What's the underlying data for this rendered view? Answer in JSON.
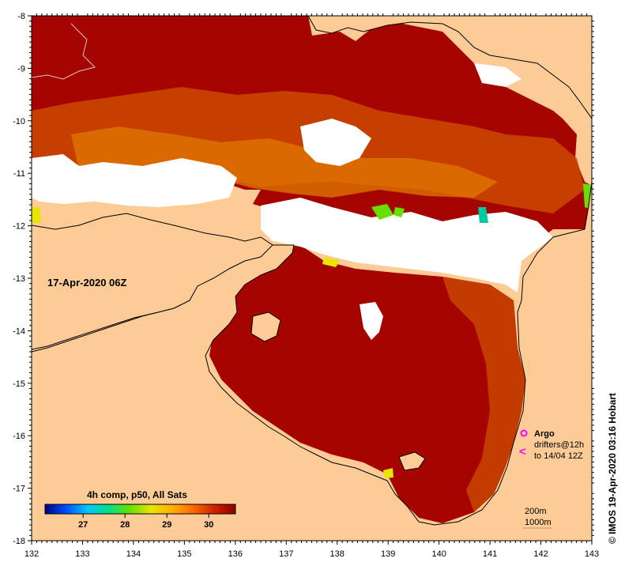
{
  "map": {
    "date_label": "17-Apr-2020 06Z",
    "credit": "© IMOS 19-Apr-2020 03:16 Hobart",
    "colorbar": {
      "title": "4h comp, p50, All Sats",
      "ticks": [
        "27",
        "28",
        "29",
        "30"
      ],
      "colors": [
        "#00008b",
        "#0050ff",
        "#00c8ff",
        "#00e08a",
        "#66e000",
        "#e6e600",
        "#ffb000",
        "#ff6a00",
        "#d02000",
        "#8b0000"
      ]
    },
    "legend": {
      "argo": "Argo",
      "drifters": "drifters@12h",
      "drifters_period": "to 14/04 12Z",
      "depth_200": "200m",
      "depth_1000": "1000m"
    },
    "axes": {
      "x_ticks": [
        "132",
        "133",
        "134",
        "135",
        "136",
        "137",
        "138",
        "139",
        "140",
        "141",
        "142",
        "143"
      ],
      "y_ticks": [
        "-8",
        "-9",
        "-10",
        "-11",
        "-12",
        "-13",
        "-14",
        "-15",
        "-16",
        "-17",
        "-18"
      ]
    },
    "colors": {
      "land": "#fccb96",
      "ocean_hot": "#a60400",
      "ocean_warm": "#cc4a00",
      "ocean_mid": "#e07a00",
      "cloud": "#ffffff",
      "argo_marker": "#ff00ff"
    }
  }
}
